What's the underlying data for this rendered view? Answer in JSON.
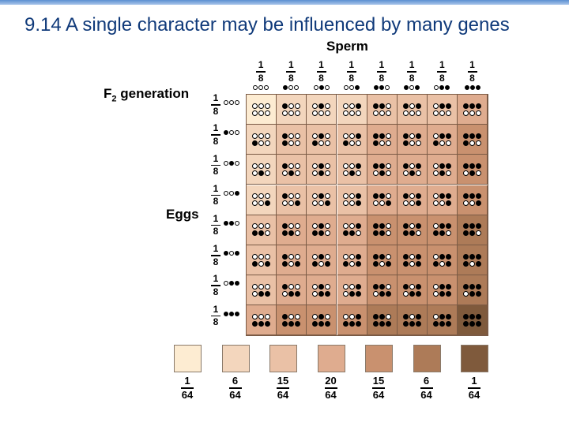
{
  "title": "9.14 A single character may be influenced by many genes",
  "labels": {
    "sperm": "Sperm",
    "f2_prefix": "F",
    "f2_sub": "2",
    "f2_suffix": " generation",
    "eggs": "Eggs"
  },
  "gamete_fraction": {
    "num": "1",
    "den": "8"
  },
  "sperm_genotypes": [
    [
      0,
      0,
      0
    ],
    [
      1,
      0,
      0
    ],
    [
      0,
      1,
      0
    ],
    [
      0,
      0,
      1
    ],
    [
      1,
      1,
      0
    ],
    [
      1,
      0,
      1
    ],
    [
      0,
      1,
      1
    ],
    [
      1,
      1,
      1
    ]
  ],
  "egg_genotypes": [
    [
      0,
      0,
      0
    ],
    [
      1,
      0,
      0
    ],
    [
      0,
      1,
      0
    ],
    [
      0,
      0,
      1
    ],
    [
      1,
      1,
      0
    ],
    [
      1,
      0,
      1
    ],
    [
      0,
      1,
      1
    ],
    [
      1,
      1,
      1
    ]
  ],
  "shade_colors": [
    "#fdecd2",
    "#f3d6bd",
    "#eac1a6",
    "#dfac8f",
    "#c9916f",
    "#ad7b58",
    "#7f5a3c"
  ],
  "phenotype_fractions": [
    {
      "num": "1",
      "den": "64"
    },
    {
      "num": "6",
      "den": "64"
    },
    {
      "num": "15",
      "den": "64"
    },
    {
      "num": "20",
      "den": "64"
    },
    {
      "num": "15",
      "den": "64"
    },
    {
      "num": "6",
      "den": "64"
    },
    {
      "num": "1",
      "den": "64"
    }
  ]
}
